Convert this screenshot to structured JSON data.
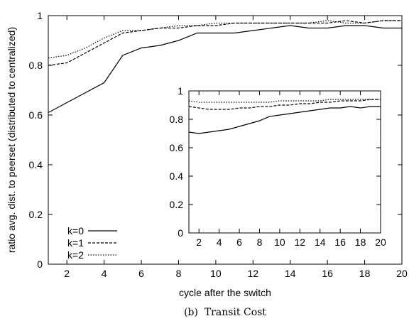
{
  "chart_data": {
    "type": "line",
    "xlabel": "cycle after the switch",
    "ylabel": "ratio avg. dist. to peerset (distributed to centralized)",
    "caption": "(b)  Transit Cost",
    "main": {
      "xlim": [
        1,
        20
      ],
      "ylim": [
        0,
        1
      ],
      "xticks": [
        2,
        4,
        6,
        8,
        10,
        12,
        14,
        16,
        18,
        20
      ],
      "yticks": [
        0,
        0.2,
        0.4,
        0.6,
        0.8,
        1
      ],
      "x": [
        1,
        2,
        3,
        4,
        5,
        6,
        7,
        8,
        9,
        10,
        11,
        12,
        13,
        14,
        15,
        16,
        17,
        18,
        19,
        20
      ],
      "series": [
        {
          "name": "k=0",
          "style": "solid",
          "values": [
            0.61,
            0.65,
            0.69,
            0.73,
            0.84,
            0.87,
            0.88,
            0.9,
            0.93,
            0.93,
            0.93,
            0.94,
            0.95,
            0.96,
            0.95,
            0.95,
            0.96,
            0.96,
            0.95,
            0.95
          ]
        },
        {
          "name": "k=1",
          "style": "dashed",
          "values": [
            0.8,
            0.81,
            0.85,
            0.89,
            0.93,
            0.94,
            0.95,
            0.95,
            0.96,
            0.96,
            0.97,
            0.97,
            0.97,
            0.97,
            0.97,
            0.97,
            0.98,
            0.97,
            0.98,
            0.98
          ]
        },
        {
          "name": "k=2",
          "style": "dotted",
          "values": [
            0.83,
            0.84,
            0.87,
            0.91,
            0.94,
            0.94,
            0.95,
            0.96,
            0.96,
            0.97,
            0.97,
            0.97,
            0.97,
            0.97,
            0.97,
            0.98,
            0.97,
            0.97,
            0.98,
            0.98
          ]
        }
      ]
    },
    "inset": {
      "xlim": [
        1,
        20
      ],
      "ylim": [
        0,
        1
      ],
      "xticks": [
        2,
        4,
        6,
        8,
        10,
        12,
        14,
        16,
        18,
        20
      ],
      "yticks": [
        0,
        0.2,
        0.4,
        0.6,
        0.8,
        1
      ],
      "x": [
        1,
        2,
        3,
        4,
        5,
        6,
        7,
        8,
        9,
        10,
        11,
        12,
        13,
        14,
        15,
        16,
        17,
        18,
        19,
        20
      ],
      "series": [
        {
          "name": "k=0",
          "style": "solid",
          "values": [
            0.71,
            0.7,
            0.71,
            0.72,
            0.73,
            0.75,
            0.77,
            0.79,
            0.82,
            0.83,
            0.84,
            0.85,
            0.86,
            0.87,
            0.88,
            0.88,
            0.89,
            0.88,
            0.89,
            0.89
          ]
        },
        {
          "name": "k=1",
          "style": "dashed",
          "values": [
            0.89,
            0.88,
            0.87,
            0.87,
            0.87,
            0.88,
            0.88,
            0.89,
            0.89,
            0.9,
            0.9,
            0.91,
            0.91,
            0.92,
            0.92,
            0.93,
            0.93,
            0.93,
            0.94,
            0.94
          ]
        },
        {
          "name": "k=2",
          "style": "dotted",
          "values": [
            0.93,
            0.92,
            0.92,
            0.92,
            0.92,
            0.92,
            0.92,
            0.92,
            0.92,
            0.93,
            0.93,
            0.93,
            0.93,
            0.93,
            0.94,
            0.94,
            0.94,
            0.94,
            0.94,
            0.94
          ]
        }
      ]
    },
    "legend": {
      "placement": "bottom-left"
    },
    "grid": false
  }
}
